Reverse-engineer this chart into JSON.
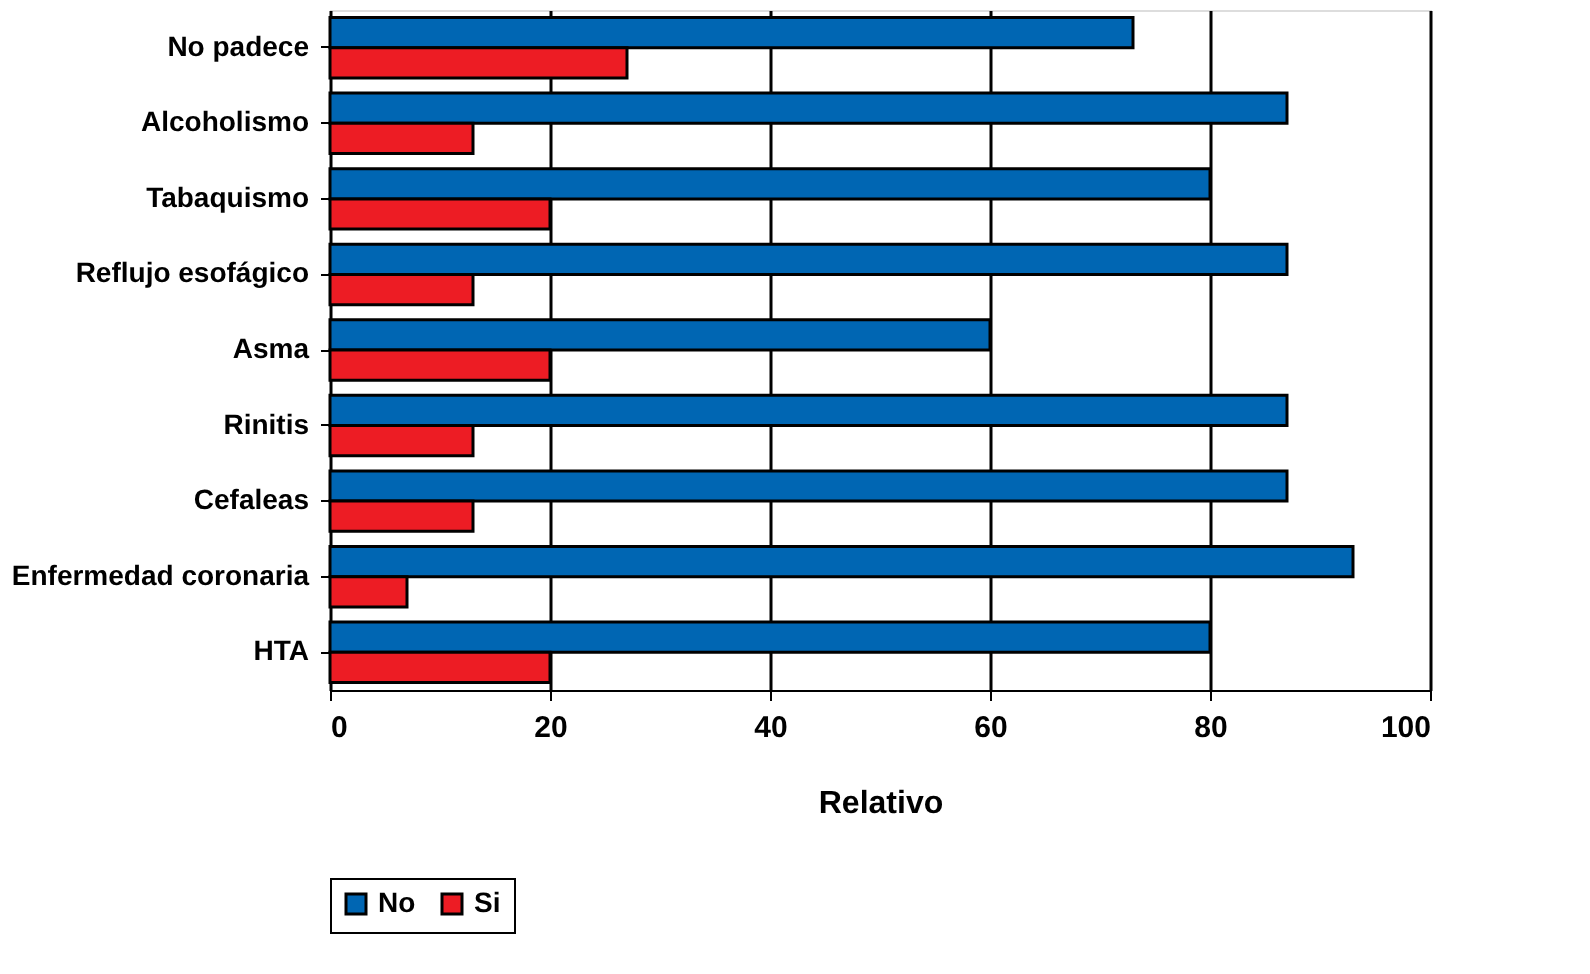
{
  "chart_data": {
    "type": "bar",
    "orientation": "horizontal",
    "xlabel": "Relativo",
    "categories": [
      "No padece",
      "Alcoholismo",
      "Tabaquismo",
      "Reflujo esofágico",
      "Asma",
      "Rinitis",
      "Cefaleas",
      "Enfermedad coronaria",
      "HTA"
    ],
    "series": [
      {
        "name": "No",
        "color": "#0066b3",
        "values": [
          73,
          87,
          80,
          87,
          60,
          87,
          87,
          93,
          80
        ]
      },
      {
        "name": "Si",
        "color": "#ed1c24",
        "values": [
          27,
          13,
          20,
          13,
          20,
          13,
          13,
          7,
          20
        ]
      }
    ],
    "xlim": [
      0,
      100
    ],
    "xticks": [
      0,
      20,
      40,
      60,
      80,
      100
    ],
    "grid": "x",
    "legend": "bottom"
  }
}
